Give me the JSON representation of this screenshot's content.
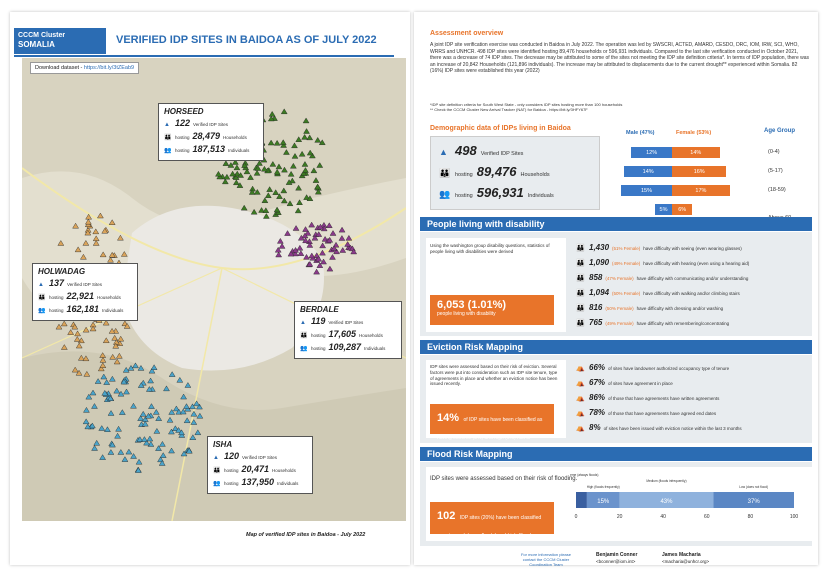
{
  "left_page": {
    "logo": {
      "line1": "CCCM Cluster",
      "line2": "SOMALIA"
    },
    "title": "VERIFIED IDP SITES IN BAIDOA AS OF JULY 2022",
    "download": {
      "label": "Download dataset - ",
      "link": "https://bit.ly/3tZEab9"
    },
    "map_caption": "Map of verified IDP sites in Baidoa - July 2022",
    "sites": [
      {
        "name": "HORSEED",
        "sites": "122",
        "sites_label": "Verified IDP Sites",
        "households": "28,479",
        "households_label": "Households",
        "individuals": "187,513",
        "individuals_label": "Individuals",
        "hosting": "hosting"
      },
      {
        "name": "HOLWADAG",
        "sites": "137",
        "sites_label": "Verified IDP Sites",
        "households": "22,921",
        "households_label": "Households",
        "individuals": "162,181",
        "individuals_label": "Individuals",
        "hosting": "hosting"
      },
      {
        "name": "BERDALE",
        "sites": "119",
        "sites_label": "Verified IDP Sites",
        "households": "17,605",
        "households_label": "Households",
        "individuals": "109,287",
        "individuals_label": "Individuals",
        "hosting": "hosting"
      },
      {
        "name": "ISHA",
        "sites": "120",
        "sites_label": "Verified IDP Sites",
        "households": "20,471",
        "households_label": "Households",
        "individuals": "137,950",
        "individuals_label": "Individuals",
        "hosting": "hosting"
      }
    ],
    "colors": {
      "horseed": "#3c7a23",
      "holwadag": "#d9a35a",
      "berdale": "#8a3a8a",
      "isha": "#4aa3c9"
    }
  },
  "overview": {
    "title": "Assessment overview",
    "body": "A joint IDP site verification exercise was conducted in Baidoa in July 2022. The operation was led by SWSCRI, ACTED, AMARD, CESDO, DRC, IOM, IRW, SCI, WHO, WRRS and UNHCR. 498 IDP sites were identified hosting 89,476 households or 596,931 individuals. Compared to the last site verification conducted in October 2021, there was a decrease of 74 IDP sites. The decrease may be attributed to some of the sites not meeting the IDP site definition criteria*. In terms of IDP population, there was an increase of 20,842 Households (121,896 individuals). The increase may be attributed to displacements due to the current drought** experienced within Somalia. 82 (16%) IDP sites were established this year (2022)",
    "note1": "*IDP site definition criteria for South West State - only considers IDP sites hosting more than 100 households",
    "note2": "** Check the CCCM Cluster New Arrival Tracker (NAT) for Baidoa - https://bit.ly/3HFY67F"
  },
  "demographics": {
    "title": "Demographic data of IDPs living in Baidoa",
    "sites": "498",
    "sites_label": "Verified IDP Sites",
    "hosting": "hosting",
    "households": "89,476",
    "households_label": "Households",
    "individuals": "596,931",
    "individuals_label": "Individuals",
    "male_header": "Male (47%)",
    "female_header": "Female (53%)",
    "age_header": "Age Group",
    "pyramid": [
      {
        "age": "(0-4)",
        "male": 12,
        "female": 14,
        "male_label": "12%",
        "female_label": "14%"
      },
      {
        "age": "(5-17)",
        "male": 14,
        "female": 16,
        "male_label": "14%",
        "female_label": "16%"
      },
      {
        "age": "(18-59)",
        "male": 15,
        "female": 17,
        "male_label": "15%",
        "female_label": "17%"
      },
      {
        "age": "Above 60",
        "male": 5,
        "female": 6,
        "male_label": "5%",
        "female_label": "6%"
      }
    ]
  },
  "disability": {
    "title": "People living with disability",
    "intro": "Using the washington group disability questions, statistics of people living with disabilities were derived",
    "total": "6,053 (1.01%)",
    "total_label": "people living with disability",
    "rows": [
      {
        "num": "1,430",
        "female": "(51% Female)",
        "text": "have difficulty with seeing (even wearing glasses)"
      },
      {
        "num": "1,090",
        "female": "(49% Female)",
        "text": "have difficulty with hearing (even using a hearing aid)"
      },
      {
        "num": "858",
        "female": "(47% Female)",
        "text": "have difficulty with communicating and/or understanding"
      },
      {
        "num": "1,094",
        "female": "(50% Female)",
        "text": "have difficulty with walking and/or climbing stairs"
      },
      {
        "num": "816",
        "female": "(50% Female)",
        "text": "have difficulty with dressing and/or washing"
      },
      {
        "num": "765",
        "female": "(49% Female)",
        "text": "have difficulty with remembering/concentrating"
      }
    ]
  },
  "eviction": {
    "title": "Eviction Risk Mapping",
    "intro": "IDP sites were assessed based on their risk of eviction. Several factors were put into consideration such as IDP site tenure, type of agreements in place and whether an eviction notice has been issued recently.",
    "highlight": "14%",
    "highlight_text": "of IDP sites have been classified as having extreme (8%) and high (6%) risk of eviction",
    "rows": [
      {
        "num": "66%",
        "text": "of sites have landowner authorized occupancy type of tenure"
      },
      {
        "num": "67%",
        "text": "of sites have agreement in place"
      },
      {
        "num": "86%",
        "text": "of those that have agreements have written agreements"
      },
      {
        "num": "78%",
        "text": "of those that have agreements have agreed end dates"
      },
      {
        "num": "8%",
        "text": "of sites have been issued with eviction notice within the last 3 months"
      }
    ]
  },
  "flood": {
    "title": "Flood Risk Mapping",
    "intro": "IDP sites were assessed based on their risk of flooding.",
    "highlight": "102",
    "highlight_text": "IDP sites (20%) have been classified as extreme (always floods) and high (floods frequently)",
    "chart_data": {
      "type": "bar",
      "orientation": "horizontal-stacked",
      "series": [
        {
          "name": "Extreme (always floods)",
          "value": 5,
          "label": "",
          "color": "#3a5fa0"
        },
        {
          "name": "High (floods frequently)",
          "value": 15,
          "label": "15%",
          "color": "#6b93cc"
        },
        {
          "name": "Medium (floods infrequently)",
          "value": 43,
          "label": "43%",
          "color": "#8fb2dd"
        },
        {
          "name": "Low (does not flood)",
          "value": 37,
          "label": "37%",
          "color": "#5b87c4"
        }
      ],
      "xlim": [
        0,
        100
      ],
      "xticks": [
        "0",
        "20",
        "40",
        "60",
        "80",
        "100"
      ]
    }
  },
  "footer": {
    "contact_note": "For more information please contact the CCCM Cluster Coordination Team",
    "contacts": [
      {
        "name": "Benjamin Conner",
        "email": "<bconner@iom.int>"
      },
      {
        "name": "James Macharia",
        "email": "<macharia@unhcr.org>"
      }
    ]
  }
}
